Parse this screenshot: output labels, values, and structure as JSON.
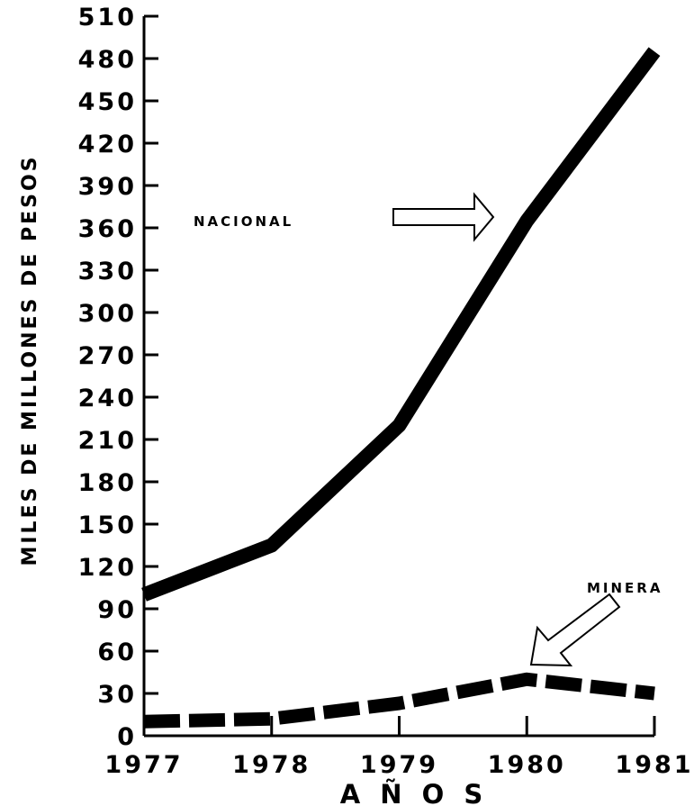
{
  "chart_data": {
    "type": "line",
    "title": "",
    "xlabel": "A Ñ O S",
    "ylabel": "MILES DE MILLONES DE PESOS",
    "x": [
      "1977",
      "1978",
      "1979",
      "1980",
      "1981"
    ],
    "xlim": [
      1977,
      1981
    ],
    "ylim": [
      0,
      510
    ],
    "yticks": [
      0,
      30,
      60,
      90,
      120,
      150,
      180,
      210,
      240,
      270,
      300,
      330,
      360,
      390,
      420,
      450,
      480,
      510
    ],
    "grid": false,
    "series": [
      {
        "name": "NACIONAL",
        "values": [
          100,
          135,
          220,
          365,
          485
        ],
        "style": "solid"
      },
      {
        "name": "MINERA",
        "values": [
          10,
          12,
          23,
          40,
          30
        ],
        "style": "dashed"
      }
    ],
    "annotations": [
      {
        "text": "NACIONAL",
        "arrow": "right"
      },
      {
        "text": "MINERA",
        "arrow": "down-left"
      }
    ],
    "colors": {
      "line": "#000000",
      "background": "#ffffff"
    }
  }
}
